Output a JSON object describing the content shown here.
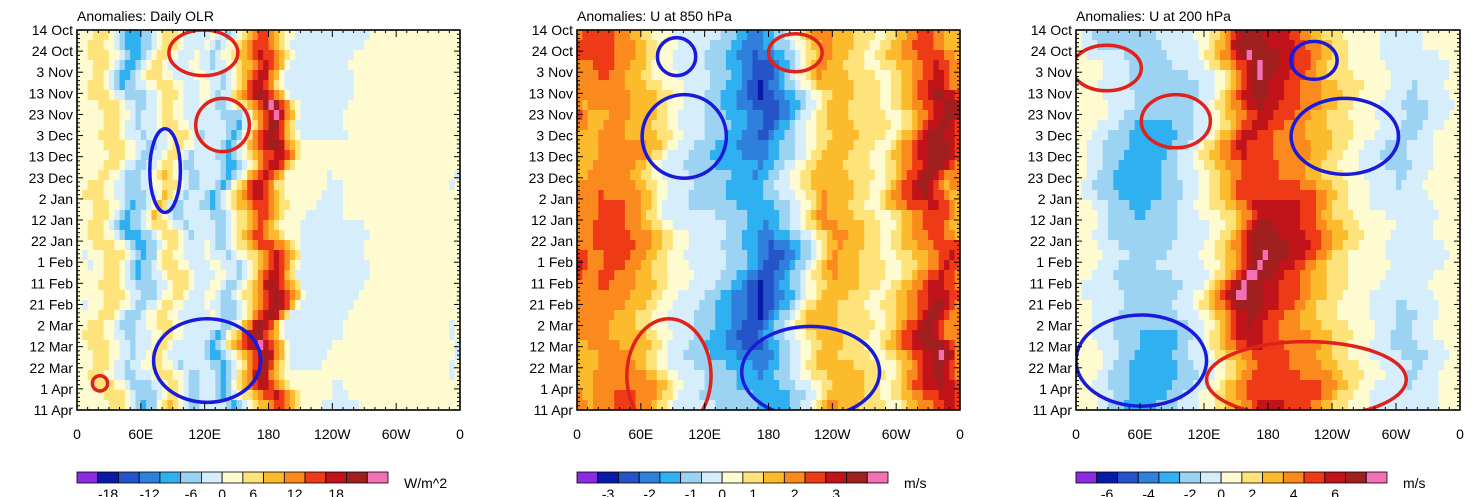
{
  "chart_data": [
    {
      "type": "heatmap",
      "title": "Anomalies: Daily OLR",
      "ylabels": [
        "14 Oct",
        "24 Oct",
        "3 Nov",
        "13 Nov",
        "23 Nov",
        "3 Dec",
        "13 Dec",
        "23 Dec",
        "2 Jan",
        "12 Jan",
        "22 Jan",
        "1 Feb",
        "11 Feb",
        "21 Feb",
        "2 Mar",
        "12 Mar",
        "22 Mar",
        "1 Apr",
        "11 Apr"
      ],
      "xlabels": [
        "0",
        "60E",
        "120E",
        "180",
        "120W",
        "60W",
        "0"
      ],
      "colorbar_labels": [
        "-18",
        "-12",
        "-6",
        "0",
        "6",
        "12",
        "18"
      ],
      "units": "W/m^2",
      "levels": [
        -21,
        -18,
        -15,
        -12,
        -9,
        -6,
        -3,
        0,
        3,
        6,
        9,
        12,
        15,
        18,
        21
      ],
      "xlim": [
        0,
        360
      ],
      "bands": [
        [
          0,
          -3
        ],
        [
          30,
          2
        ],
        [
          55,
          -9
        ],
        [
          70,
          -5
        ],
        [
          85,
          3
        ],
        [
          105,
          -6
        ],
        [
          125,
          -3
        ],
        [
          140,
          -9
        ],
        [
          160,
          3
        ],
        [
          180,
          15
        ],
        [
          205,
          -3
        ],
        [
          240,
          -4
        ],
        [
          300,
          -1
        ],
        [
          340,
          -2
        ],
        [
          360,
          -1
        ]
      ]
    },
    {
      "type": "heatmap",
      "title": "Anomalies: U at 850 hPa",
      "ylabels": [
        "14 Oct",
        "24 Oct",
        "3 Nov",
        "13 Nov",
        "23 Nov",
        "3 Dec",
        "13 Dec",
        "23 Dec",
        "2 Jan",
        "12 Jan",
        "22 Jan",
        "1 Feb",
        "11 Feb",
        "21 Feb",
        "2 Mar",
        "12 Mar",
        "22 Mar",
        "1 Apr",
        "11 Apr"
      ],
      "xlabels": [
        "0",
        "60E",
        "120E",
        "180",
        "120W",
        "60W",
        "0"
      ],
      "colorbar_labels": [
        "-3",
        "-2",
        "-1",
        "0",
        "1",
        "2",
        "3"
      ],
      "units": "m/s",
      "levels": [
        -3.5,
        -3,
        -2.5,
        -2,
        -1.5,
        -1,
        -0.5,
        0,
        0.5,
        1,
        1.5,
        2,
        2.5,
        3,
        3.5
      ],
      "xlim": [
        0,
        360
      ],
      "bands": [
        [
          0,
          1
        ],
        [
          30,
          1.5
        ],
        [
          60,
          1
        ],
        [
          90,
          -0.5
        ],
        [
          120,
          -1
        ],
        [
          145,
          -1.5
        ],
        [
          175,
          -2.5
        ],
        [
          205,
          -1
        ],
        [
          235,
          1
        ],
        [
          260,
          0.5
        ],
        [
          290,
          -0.2
        ],
        [
          320,
          1.5
        ],
        [
          340,
          2.5
        ],
        [
          360,
          1
        ]
      ]
    },
    {
      "type": "heatmap",
      "title": "Anomalies: U at 200 hPa",
      "ylabels": [
        "14 Oct",
        "24 Oct",
        "3 Nov",
        "13 Nov",
        "23 Nov",
        "3 Dec",
        "13 Dec",
        "23 Dec",
        "2 Jan",
        "12 Jan",
        "22 Jan",
        "1 Feb",
        "11 Feb",
        "21 Feb",
        "2 Mar",
        "12 Mar",
        "22 Mar",
        "1 Apr",
        "11 Apr"
      ],
      "xlabels": [
        "0",
        "60E",
        "120E",
        "180",
        "120W",
        "60W",
        "0"
      ],
      "colorbar_labels": [
        "-6",
        "-4",
        "-2",
        "0",
        "2",
        "4",
        "6"
      ],
      "units": "m/s",
      "levels": [
        -7,
        -6,
        -5,
        -4,
        -3,
        -2,
        -1,
        0,
        1,
        2,
        3,
        4,
        5,
        6,
        7
      ],
      "xlim": [
        0,
        360
      ],
      "bands": [
        [
          0,
          0
        ],
        [
          30,
          -2
        ],
        [
          60,
          -3
        ],
        [
          90,
          -2.5
        ],
        [
          120,
          -1
        ],
        [
          145,
          2
        ],
        [
          165,
          5
        ],
        [
          190,
          4
        ],
        [
          215,
          3
        ],
        [
          245,
          0.5
        ],
        [
          280,
          -1
        ],
        [
          310,
          -2
        ],
        [
          340,
          -1
        ],
        [
          360,
          0
        ]
      ]
    }
  ]
}
